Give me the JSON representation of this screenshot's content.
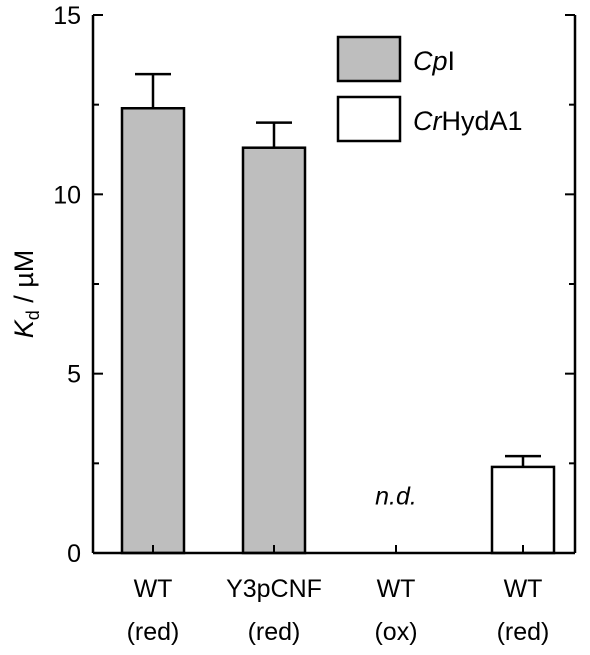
{
  "chart_data": {
    "type": "bar",
    "ylabel": {
      "main": "K",
      "sub": "d",
      "rest": " / µM"
    },
    "ylim": [
      0,
      15
    ],
    "yticks": [
      0,
      5,
      10,
      15
    ],
    "grid": false,
    "legend_position": "top-right",
    "categories": [
      {
        "line1": "WT",
        "line2": "(red)"
      },
      {
        "line1": "Y3pCNF",
        "line2": "(red)"
      },
      {
        "line1": "WT",
        "line2": "(ox)"
      },
      {
        "line1": "WT",
        "line2": "(red)"
      }
    ],
    "series": [
      {
        "name": {
          "italic": "Cp",
          "plain": "I"
        },
        "fill": "#bebebe"
      },
      {
        "name": {
          "italic": "Cr",
          "plain": "HydA1"
        },
        "fill": "#ffffff"
      }
    ],
    "bars": [
      {
        "category": 0,
        "series": 0,
        "value": 12.4,
        "error": 0.95
      },
      {
        "category": 1,
        "series": 0,
        "value": 11.3,
        "error": 0.7
      },
      {
        "category": 3,
        "series": 1,
        "value": 2.4,
        "error": 0.3
      }
    ],
    "annotations": [
      {
        "category": 2,
        "text": "n.d.",
        "at_value": 1.6
      }
    ]
  }
}
